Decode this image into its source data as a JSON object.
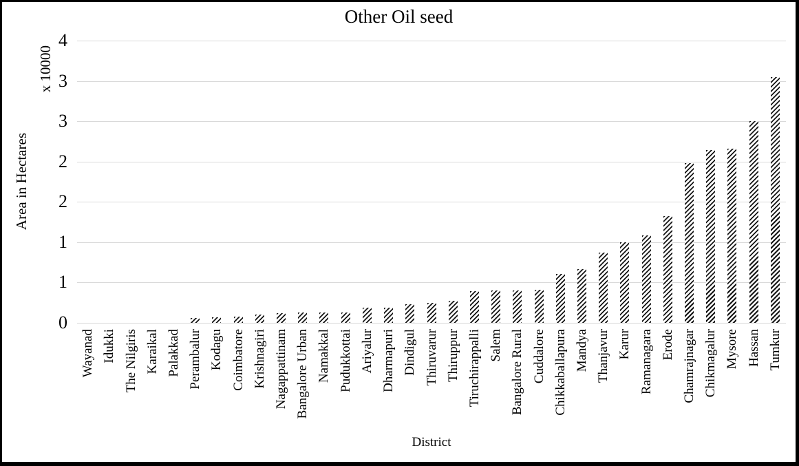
{
  "chart_data": {
    "type": "bar",
    "title": "Other Oil seed",
    "xlabel": "District",
    "ylabel": "Area in Hectares",
    "y_unit_label": "x 10000",
    "ylim": [
      0,
      3.5
    ],
    "y_tick_step": 0.5,
    "grid": true,
    "legend": false,
    "y_ticks": [
      {
        "value": 0,
        "label": "0"
      },
      {
        "value": 0.5,
        "label": "1"
      },
      {
        "value": 1,
        "label": "1"
      },
      {
        "value": 1.5,
        "label": "2"
      },
      {
        "value": 2,
        "label": "2"
      },
      {
        "value": 2.5,
        "label": "3"
      },
      {
        "value": 3,
        "label": "3"
      },
      {
        "value": 3.5,
        "label": "4"
      }
    ],
    "categories": [
      "Wayanad",
      "Idukki",
      "The Nilgiris",
      "Karaikal",
      "Palakkad",
      "Perambalur",
      "Kodagu",
      "Coimbatore",
      "Krishnagiri",
      "Nagappattinam",
      "Bangalore Urban",
      "Namakkal",
      "Pudukkottai",
      "Ariyalur",
      "Dharmapuri",
      "Dindigul",
      "Thiruvarur",
      "Thiruppur",
      "Tiruchirappalli",
      "Salem",
      "Bangalore Rural",
      "Cuddalore",
      "Chikkaballapura",
      "Mandya",
      "Thanjavur",
      "Karur",
      "Ramanagara",
      "Erode",
      "Chamrajnagar",
      "Chikmagalur",
      "Mysore",
      "Hassan",
      "Tumkur"
    ],
    "values": [
      0,
      0,
      0,
      0,
      0,
      0.06,
      0.07,
      0.08,
      0.1,
      0.12,
      0.13,
      0.13,
      0.13,
      0.19,
      0.19,
      0.23,
      0.25,
      0.27,
      0.39,
      0.4,
      0.4,
      0.41,
      0.61,
      0.67,
      0.87,
      1.0,
      1.08,
      1.32,
      1.98,
      2.14,
      2.16,
      2.5,
      3.05
    ],
    "styles": {
      "bar_fill": "black-diagonal-hatch",
      "hatch_color": "#151515",
      "gridline_color": "#d9d9d9",
      "background": "#ffffff",
      "border_color": "#000000",
      "text_color": "#000000"
    }
  }
}
